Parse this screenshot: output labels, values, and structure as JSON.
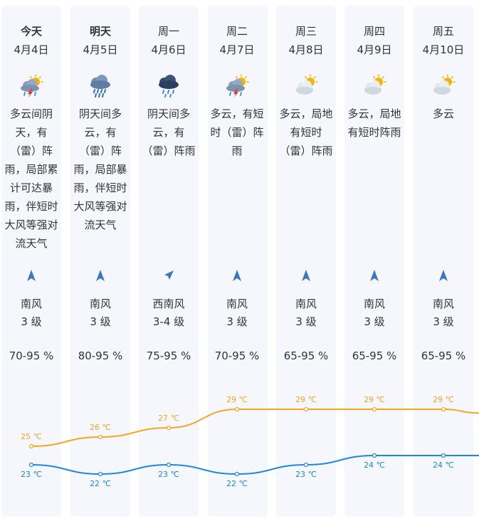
{
  "forecast": [
    {
      "day": "今天",
      "date": "4月4日",
      "icon": "cloud-thunder-rain-sun-icon",
      "desc": "多云间阴天，有（雷）阵雨，局部累计可达暴雨，伴短时大风等强对流天气",
      "wind_dir": "南风",
      "wind_level": "3 级",
      "humidity": "70-95 %",
      "high": "25 ℃",
      "low": "23 ℃",
      "high_val": 25,
      "low_val": 23,
      "wind_icon": "north-arrow-icon"
    },
    {
      "day": "明天",
      "date": "4月5日",
      "icon": "cloud-heavy-rain-icon",
      "desc": "阴天间多云，有（雷）阵雨，局部暴雨，伴短时大风等强对流天气",
      "wind_dir": "南风",
      "wind_level": "3 级",
      "humidity": "80-95 %",
      "high": "26 ℃",
      "low": "22 ℃",
      "high_val": 26,
      "low_val": 22,
      "wind_icon": "north-arrow-icon"
    },
    {
      "day": "周一",
      "date": "4月6日",
      "icon": "dark-cloud-rain-icon",
      "desc": "阴天间多云，有（雷）阵雨",
      "wind_dir": "西南风",
      "wind_level": "3-4 级",
      "humidity": "75-95 %",
      "high": "27 ℃",
      "low": "23 ℃",
      "high_val": 27,
      "low_val": 23,
      "wind_icon": "northeast-arrow-icon"
    },
    {
      "day": "周二",
      "date": "4月7日",
      "icon": "cloud-thunder-rain-sun-icon",
      "desc": "多云，有短时（雷）阵雨",
      "wind_dir": "南风",
      "wind_level": "3 级",
      "humidity": "70-95 %",
      "high": "29 ℃",
      "low": "22 ℃",
      "high_val": 29,
      "low_val": 22,
      "wind_icon": "north-arrow-icon"
    },
    {
      "day": "周三",
      "date": "4月8日",
      "icon": "partly-cloudy-icon",
      "desc": "多云，局地有短时（雷）阵雨",
      "wind_dir": "南风",
      "wind_level": "3 级",
      "humidity": "65-95 %",
      "high": "29 ℃",
      "low": "23 ℃",
      "high_val": 29,
      "low_val": 23,
      "wind_icon": "north-arrow-icon"
    },
    {
      "day": "周四",
      "date": "4月9日",
      "icon": "partly-cloudy-icon",
      "desc": "多云，局地有短时阵雨",
      "wind_dir": "南风",
      "wind_level": "3 级",
      "humidity": "65-95 %",
      "high": "29 ℃",
      "low": "24 ℃",
      "high_val": 29,
      "low_val": 24,
      "wind_icon": "north-arrow-icon"
    },
    {
      "day": "周五",
      "date": "4月10日",
      "icon": "partly-cloudy-icon",
      "desc": "多云",
      "wind_dir": "南风",
      "wind_level": "3 级",
      "humidity": "65-95 %",
      "high": "29 ℃",
      "low": "24 ℃",
      "high_val": 29,
      "low_val": 24,
      "wind_icon": "north-arrow-icon"
    }
  ],
  "colors": {
    "high_line": "#f5a623",
    "low_line": "#1e88e5",
    "card_bg": "#f5f7fc",
    "wind_icon": "#3a78c3"
  }
}
